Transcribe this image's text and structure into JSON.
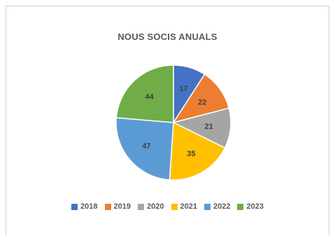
{
  "chart_data": {
    "type": "pie",
    "title": "NOUS SOCIS ANUALS",
    "categories": [
      "2018",
      "2019",
      "2020",
      "2021",
      "2022",
      "2023"
    ],
    "values": [
      17,
      22,
      21,
      35,
      47,
      44
    ],
    "colors": [
      "#4472C4",
      "#ED7D31",
      "#A5A5A5",
      "#FFC000",
      "#5B9BD5",
      "#70AD47"
    ],
    "data_labels": [
      "17",
      "22",
      "21",
      "35",
      "47",
      "44"
    ],
    "legend_position": "bottom"
  }
}
